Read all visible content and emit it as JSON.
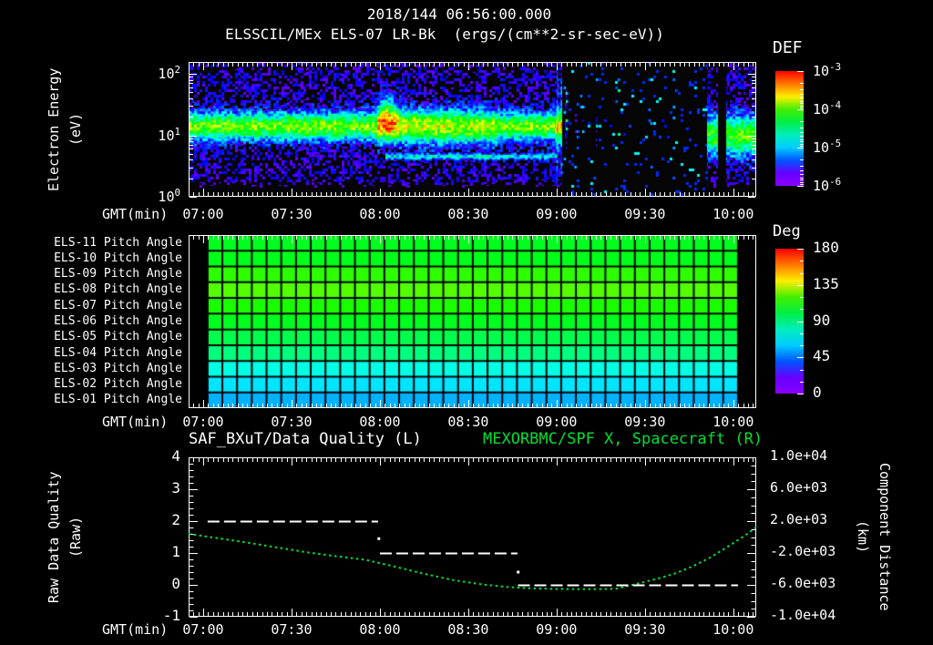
{
  "header": {
    "title": "2018/144 06:56:00.000",
    "subtitle": "ELSSCIL/MEx ELS-07 LR-Bk  (ergs/(cm**2-sr-sec-eV))"
  },
  "time_axis": {
    "label": "GMT(min)",
    "tick_labels": [
      "07:00",
      "07:30",
      "08:00",
      "08:30",
      "09:00",
      "09:30",
      "10:00"
    ],
    "tick_minutes": [
      0,
      30,
      60,
      90,
      120,
      150,
      180
    ],
    "start_min": -4.95,
    "end_min": 187.8
  },
  "panel_energy": {
    "ylabel_line1": "Electron Energy",
    "ylabel_line2": "(eV)",
    "yticks": [
      {
        "base": "10",
        "exp": "2",
        "log": 2
      },
      {
        "base": "10",
        "exp": "1",
        "log": 1
      },
      {
        "base": "10",
        "exp": "0",
        "log": 0
      }
    ],
    "colorbar": {
      "label": "DEF",
      "ticks": [
        {
          "base": "10",
          "exp": "-3",
          "log": -3
        },
        {
          "base": "10",
          "exp": "-4",
          "log": -4
        },
        {
          "base": "10",
          "exp": "-5",
          "log": -5
        },
        {
          "base": "10",
          "exp": "-6",
          "log": -6
        }
      ]
    }
  },
  "panel_pitch": {
    "colorbar": {
      "label": "Deg",
      "ticks": [
        180,
        135,
        90,
        45,
        0
      ],
      "min": 0,
      "max": 180
    }
  },
  "panel_line": {
    "title_left": "SAF_BXuT/Data Quality (L)",
    "title_right": "MEXORBMC/SPF X, Spacecraft (R)",
    "ylabel_left_line1": "Raw Data Quality",
    "ylabel_left_line2": "(Raw)",
    "yticks_left": [
      4,
      3,
      2,
      1,
      0,
      -1
    ],
    "ylabel_right_line1": "Component Distance",
    "ylabel_right_line2": "(km)",
    "yticks_right": [
      "1.0e+04",
      "6.0e+03",
      "2.0e+03",
      "-2.0e+03",
      "-6.0e+03",
      "-1.0e+04"
    ],
    "yticks_right_km": [
      10000,
      6000,
      2000,
      -2000,
      -6000,
      -10000
    ]
  },
  "colors": {
    "background": "#000000",
    "foreground": "#ffffff",
    "series_green": "#00e033",
    "rainbow_top_to_bottom": [
      "#ff0000",
      "#ff7700",
      "#ffee00",
      "#44ee00",
      "#00ee44",
      "#00eebb",
      "#00ccff",
      "#0055ff",
      "#6600ff",
      "#8800ff"
    ]
  },
  "chart_data": [
    {
      "type": "heatmap",
      "title": "ELSSCIL/MEx ELS-07 LR-Bk",
      "units": "ergs/(cm**2-sr-sec-eV)",
      "colorbar_label": "DEF",
      "x_range_gmt": [
        "06:55",
        "10:08"
      ],
      "ylabel": "Electron Energy (eV)",
      "y_log_range_ev": [
        0,
        2.19
      ],
      "z_log_range": [
        -6,
        -3
      ],
      "features": {
        "seed": 11,
        "base_log": -6.05,
        "noise_amp": 0.85,
        "main_band": {
          "center_log_ev": 1.15,
          "sigma_log": 0.22,
          "amp": 1.95,
          "end_min": 122
        },
        "enhancement": {
          "start_min": 59,
          "end_min": 100,
          "amp": 2.35,
          "sigma_log": 0.26,
          "decay_per_min": 0.008
        },
        "hot_blob": {
          "center_min": 62.5,
          "sigma_min": 3.2,
          "center_log_ev": 1.38,
          "sigma_log": 0.3,
          "amp": 1.15
        },
        "low_line": {
          "center_log_ev": 0.66,
          "sigma_log": 0.05,
          "amp": 1.05,
          "start_min": 62,
          "end_min": 120
        },
        "dropout": {
          "start_min": 122,
          "end_min": 171
        },
        "recovery_patch": {
          "start_min": 171,
          "end_min": 188,
          "center_log_ev": 1.0,
          "sigma_log": 0.32,
          "amp": 1.8
        },
        "black_gap": {
          "start_min": 174.8,
          "end_min": 177.6
        },
        "streaks": [
          {
            "min": 120.3,
            "amp": 0.85
          },
          {
            "min": 121.7,
            "amp": 0.8
          },
          {
            "min": 123.2,
            "amp": 1.4
          },
          {
            "min": 126.5,
            "amp": 0.9
          },
          {
            "min": 128.8,
            "amp": 0.8
          },
          {
            "min": 133.5,
            "amp": 0.95
          },
          {
            "min": 141.0,
            "amp": 0.6
          },
          {
            "min": 152.0,
            "amp": 0.55
          },
          {
            "min": 160.0,
            "amp": 0.5
          }
        ]
      }
    },
    {
      "type": "heatmap",
      "colorbar_label": "Deg",
      "scale_deg": [
        0,
        180
      ],
      "data_start_min": 1.5,
      "data_end_min": 181.6,
      "columns": 36,
      "rows": [
        {
          "label": "ELS-11 Pitch Angle",
          "deg": 95
        },
        {
          "label": "ELS-10 Pitch Angle",
          "deg": 96
        },
        {
          "label": "ELS-09 Pitch Angle",
          "deg": 107
        },
        {
          "label": "ELS-08 Pitch Angle",
          "deg": 113
        },
        {
          "label": "ELS-07 Pitch Angle",
          "deg": 104
        },
        {
          "label": "ELS-06 Pitch Angle",
          "deg": 95
        },
        {
          "label": "ELS-05 Pitch Angle",
          "deg": 88
        },
        {
          "label": "ELS-04 Pitch Angle",
          "deg": 80
        },
        {
          "label": "ELS-03 Pitch Angle",
          "deg": 64
        },
        {
          "label": "ELS-02 Pitch Angle",
          "deg": 56
        },
        {
          "label": "ELS-01 Pitch Angle",
          "deg": 48
        }
      ]
    },
    {
      "type": "line",
      "left_axis": {
        "label": "Raw Data Quality (Raw)",
        "range": [
          -1,
          4
        ]
      },
      "right_axis": {
        "label": "Component Distance (km)",
        "range": [
          -10000,
          10000
        ]
      },
      "series": [
        {
          "name": "SAF_BXuT/Data Quality (L)",
          "axis": "left",
          "color": "#ffffff",
          "style": "dashed",
          "segments": [
            {
              "value": 2,
              "start_min": 1.5,
              "end_min": 59.4
            },
            {
              "value": 1,
              "start_min": 60.0,
              "end_min": 106.7
            },
            {
              "value": 0,
              "start_min": 106.9,
              "end_min": 181.6
            }
          ],
          "transition_points": [
            {
              "min": 59.5,
              "value": 1.45
            },
            {
              "min": 106.8,
              "value": 0.4
            }
          ]
        },
        {
          "name": "MEXORBMC/SPF X, Spacecraft (R)",
          "axis": "right",
          "color": "#00e033",
          "style": "dotted",
          "points_min_km": [
            [
              -5,
              400
            ],
            [
              5,
              -150
            ],
            [
              15,
              -700
            ],
            [
              25,
              -1300
            ],
            [
              35,
              -1900
            ],
            [
              45,
              -2400
            ],
            [
              55,
              -2850
            ],
            [
              65,
              -3700
            ],
            [
              75,
              -4600
            ],
            [
              85,
              -5400
            ],
            [
              95,
              -5950
            ],
            [
              103,
              -6250
            ],
            [
              110,
              -6420
            ],
            [
              120,
              -6520
            ],
            [
              130,
              -6540
            ],
            [
              140,
              -6500
            ],
            [
              147,
              -5900
            ],
            [
              154,
              -5250
            ],
            [
              160,
              -4600
            ],
            [
              166,
              -3700
            ],
            [
              172,
              -2600
            ],
            [
              178,
              -1250
            ],
            [
              184,
              200
            ],
            [
              188,
              1300
            ]
          ]
        }
      ]
    }
  ]
}
